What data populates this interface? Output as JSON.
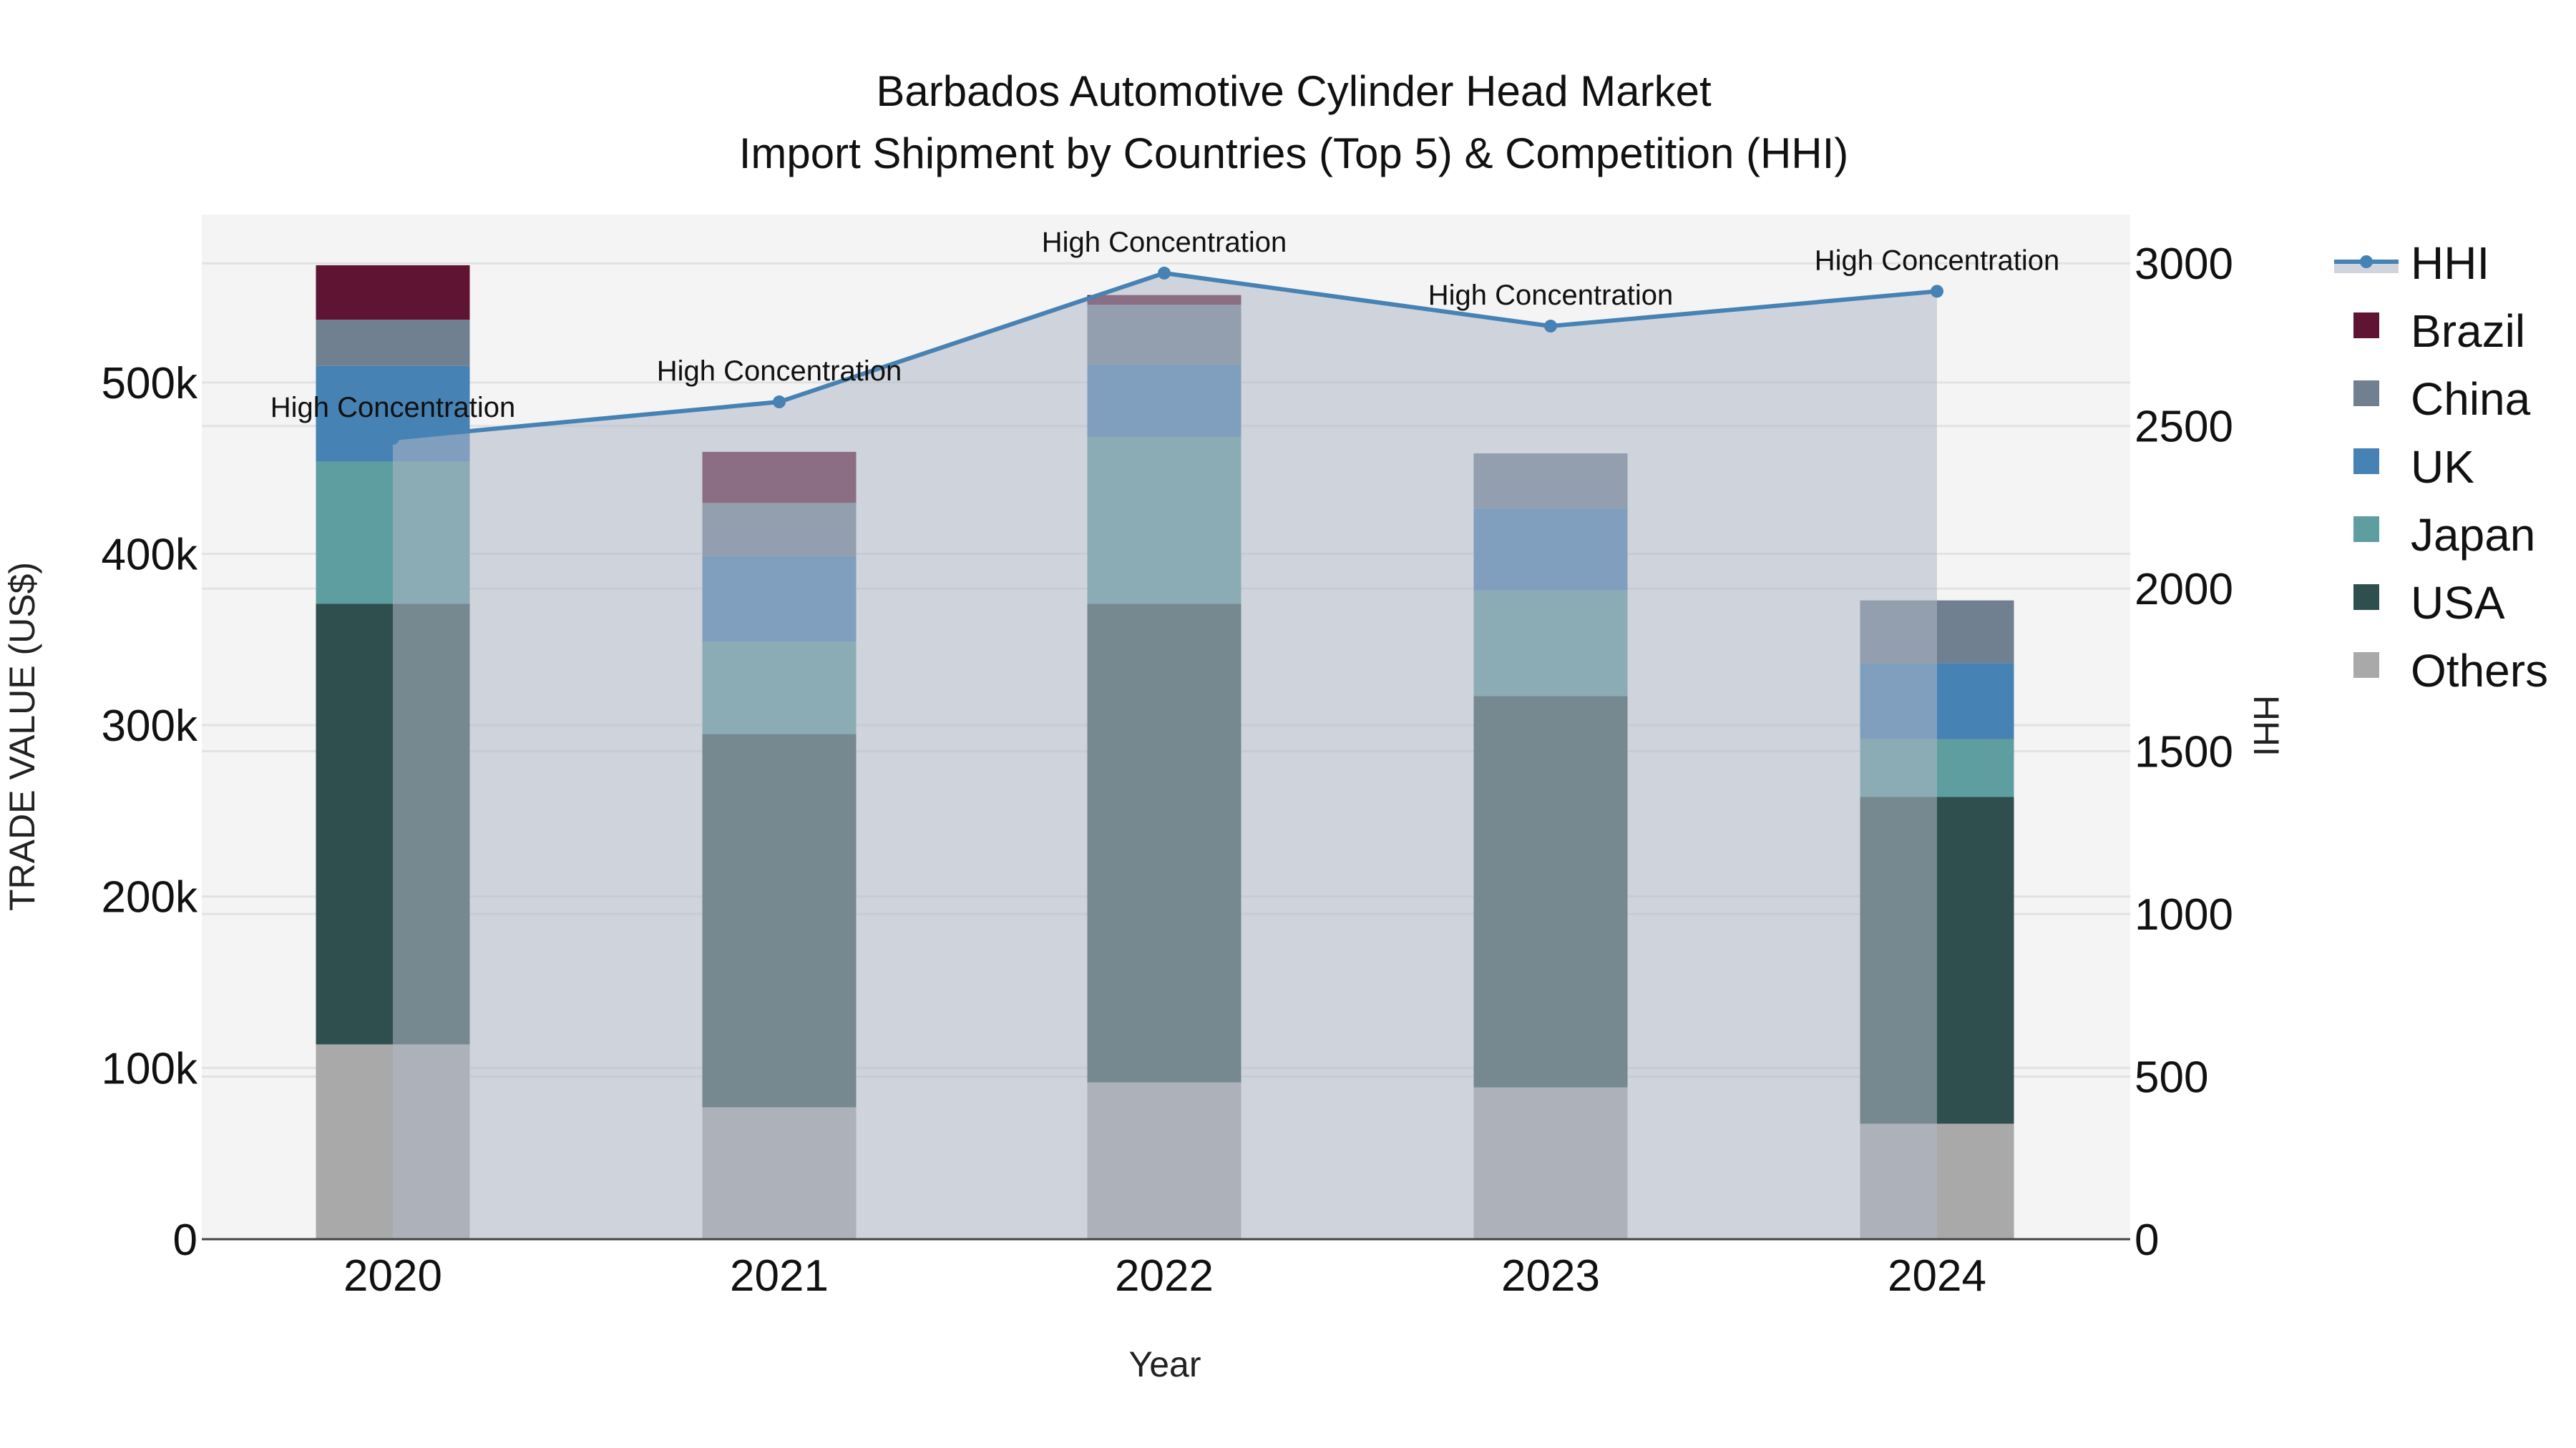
{
  "chart_data": {
    "type": "bar",
    "title": "Barbados Automotive Cylinder Head Market",
    "subtitle": "Import Shipment by Countries (Top 5) & Competition (HHI)",
    "xlabel": "Year",
    "ylabel": "TRADE VALUE (US$)",
    "y2label": "HHI",
    "categories": [
      "2020",
      "2021",
      "2022",
      "2023",
      "2024"
    ],
    "stacked": true,
    "ylim": [
      0,
      598000
    ],
    "y_ticks": [
      0,
      100000,
      200000,
      300000,
      400000,
      500000
    ],
    "y_tick_labels": [
      "0",
      "100k",
      "200k",
      "300k",
      "400k",
      "500k"
    ],
    "y2lim": [
      0,
      3150
    ],
    "y2_ticks": [
      0,
      500,
      1000,
      1500,
      2000,
      2500,
      3000
    ],
    "y2_tick_labels": [
      "0",
      "500",
      "1000",
      "1500",
      "2000",
      "2500",
      "3000"
    ],
    "series": [
      {
        "name": "Others",
        "color": "#a9a9a9",
        "values": [
          113700,
          77000,
          91500,
          88600,
          67400
        ]
      },
      {
        "name": "USA",
        "color": "#2f4f4f",
        "values": [
          257200,
          217800,
          279400,
          228400,
          190800
        ]
      },
      {
        "name": "Japan",
        "color": "#5f9ea0",
        "values": [
          82900,
          53900,
          97300,
          61600,
          33700
        ]
      },
      {
        "name": "UK",
        "color": "#4682b4",
        "values": [
          55800,
          50100,
          42400,
          48200,
          44300
        ]
      },
      {
        "name": "China",
        "color": "#708090",
        "values": [
          27000,
          30900,
          34700,
          31800,
          36600
        ]
      },
      {
        "name": "Brazil",
        "color": "#601434",
        "values": [
          31800,
          29800,
          5700,
          0,
          0
        ]
      }
    ],
    "line_series": {
      "name": "HHI",
      "axis": "y2",
      "color": "#4682b4",
      "fill_color": "#b0b8c6",
      "values": [
        2462,
        2574,
        2970,
        2807,
        2914
      ],
      "annotations": [
        "High Concentration",
        "High Concentration",
        "High Concentration",
        "High Concentration",
        "High Concentration"
      ]
    },
    "legend": [
      "HHI",
      "Brazil",
      "China",
      "UK",
      "Japan",
      "USA",
      "Others"
    ],
    "legend_position": "right",
    "grid": true
  }
}
